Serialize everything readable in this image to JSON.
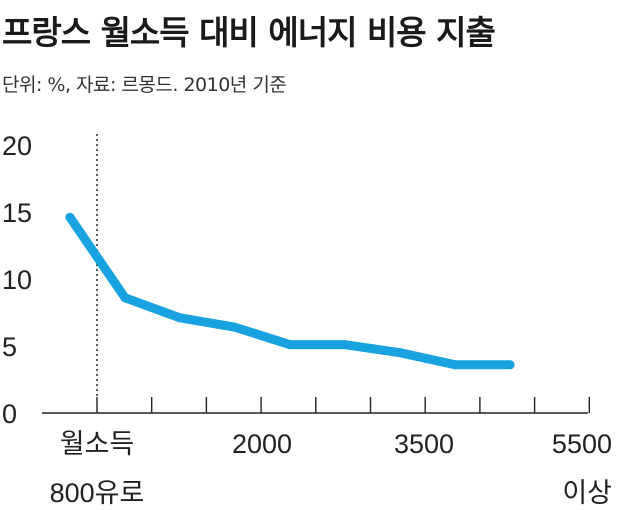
{
  "title": "프랑스 월소득 대비 에너지 비용 지출",
  "subtitle": "단위: %, 자료: 르몽드. 2010년 기준",
  "colors": {
    "line": "#18a3e0",
    "axis": "#222222",
    "marker_line": "#333333"
  },
  "chart_data": {
    "type": "line",
    "title": "프랑스 월소득 대비 에너지 비용 지출",
    "xlabel": "",
    "ylabel": "",
    "ylim": [
      0,
      20
    ],
    "y_ticks": [
      "0",
      "5",
      "10",
      "15",
      "20"
    ],
    "x_tick_labels": [
      {
        "line1": "월소득",
        "line2": "800유로"
      },
      {
        "line1": "2000",
        "line2": ""
      },
      {
        "line1": "3500",
        "line2": ""
      },
      {
        "line1": "5500",
        "line2": "이상"
      }
    ],
    "x": [
      0,
      1,
      2,
      3,
      4,
      5,
      6,
      7,
      8
    ],
    "values": [
      14.6,
      8.6,
      7.1,
      6.4,
      5.1,
      5.1,
      4.5,
      3.6,
      3.6
    ],
    "reference_line": "월소득 800유로",
    "grid": false,
    "legend": "none"
  }
}
